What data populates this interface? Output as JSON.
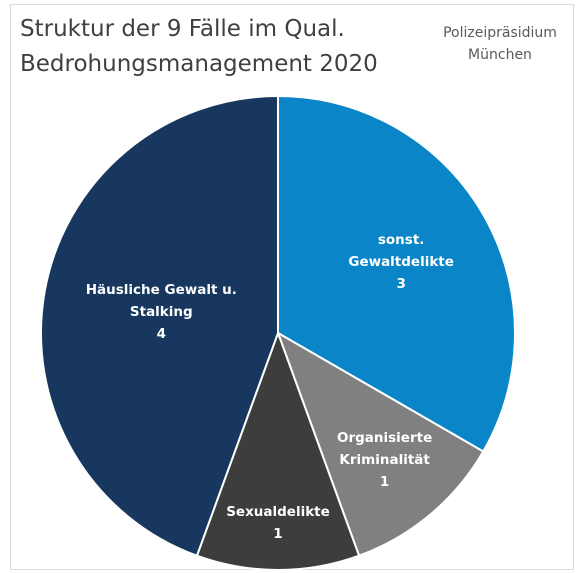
{
  "chart_data": {
    "type": "pie",
    "title": "Struktur der 9 Fälle im Qual. Bedrohungsmanagement 2020",
    "source": "Polizeipräsidium München",
    "categories": [
      "sonst. Gewaltdelikte",
      "Organisierte Kriminalität",
      "Sexualdelikte",
      "Häusliche Gewalt u. Stalking"
    ],
    "values": [
      3,
      1,
      1,
      4
    ],
    "colors": [
      "#0a86c8",
      "#808080",
      "#3d3d3d",
      "#17375e"
    ]
  }
}
